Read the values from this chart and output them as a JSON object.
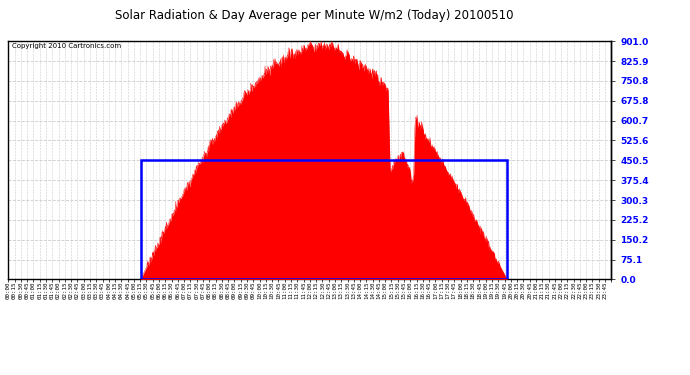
{
  "title": "Solar Radiation & Day Average per Minute W/m2 (Today) 20100510",
  "copyright": "Copyright 2010 Cartronics.com",
  "bg_color": "#ffffff",
  "plot_bg_color": "#ffffff",
  "fill_color": "#ff0000",
  "line_color": "#0000ff",
  "grid_color": "#cccccc",
  "y_ticks": [
    0.0,
    75.1,
    150.2,
    225.2,
    300.3,
    375.4,
    450.5,
    525.6,
    600.7,
    675.8,
    750.8,
    825.9,
    901.0
  ],
  "y_max": 901.0,
  "total_minutes": 1440,
  "sunrise_minute": 316,
  "sunset_minute": 1191,
  "day_avg": 450.5,
  "peak_minute": 771
}
